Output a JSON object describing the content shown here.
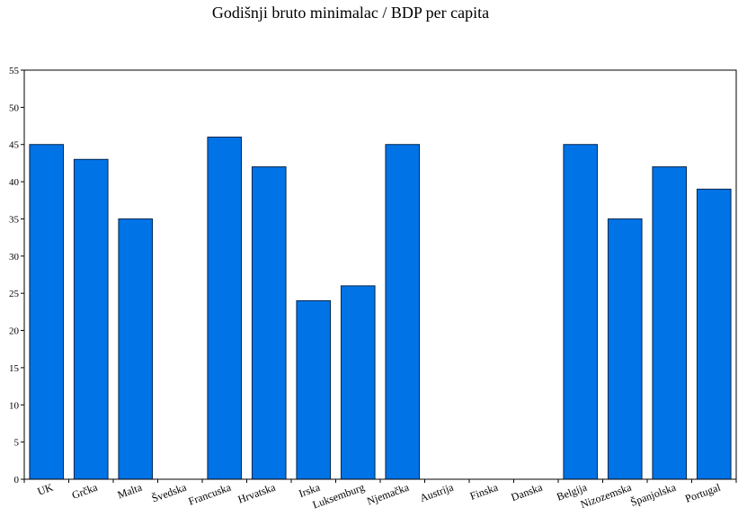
{
  "chart_data": {
    "type": "bar",
    "title": "Godišnji bruto minimalac / BDP per capita",
    "xlabel": "",
    "ylabel": "",
    "categories": [
      "UK",
      "Grčka",
      "Malta",
      "Švedska",
      "Francuska",
      "Hrvatska",
      "Irska",
      "Luksemburg",
      "Njemačka",
      "Austrija",
      "Finska",
      "Danska",
      "Belgija",
      "Nizozemska",
      "Španjolska",
      "Portugal"
    ],
    "values": [
      45,
      43,
      35,
      null,
      46,
      42,
      24,
      26,
      45,
      null,
      null,
      null,
      45,
      35,
      42,
      39
    ],
    "ylim": [
      0,
      55
    ],
    "yticks": [
      0,
      5,
      10,
      15,
      20,
      25,
      30,
      35,
      40,
      45,
      50,
      55
    ],
    "grid": false,
    "legend": "none",
    "bar_color": "#0073e6",
    "bar_edge_color": "#00264d"
  }
}
